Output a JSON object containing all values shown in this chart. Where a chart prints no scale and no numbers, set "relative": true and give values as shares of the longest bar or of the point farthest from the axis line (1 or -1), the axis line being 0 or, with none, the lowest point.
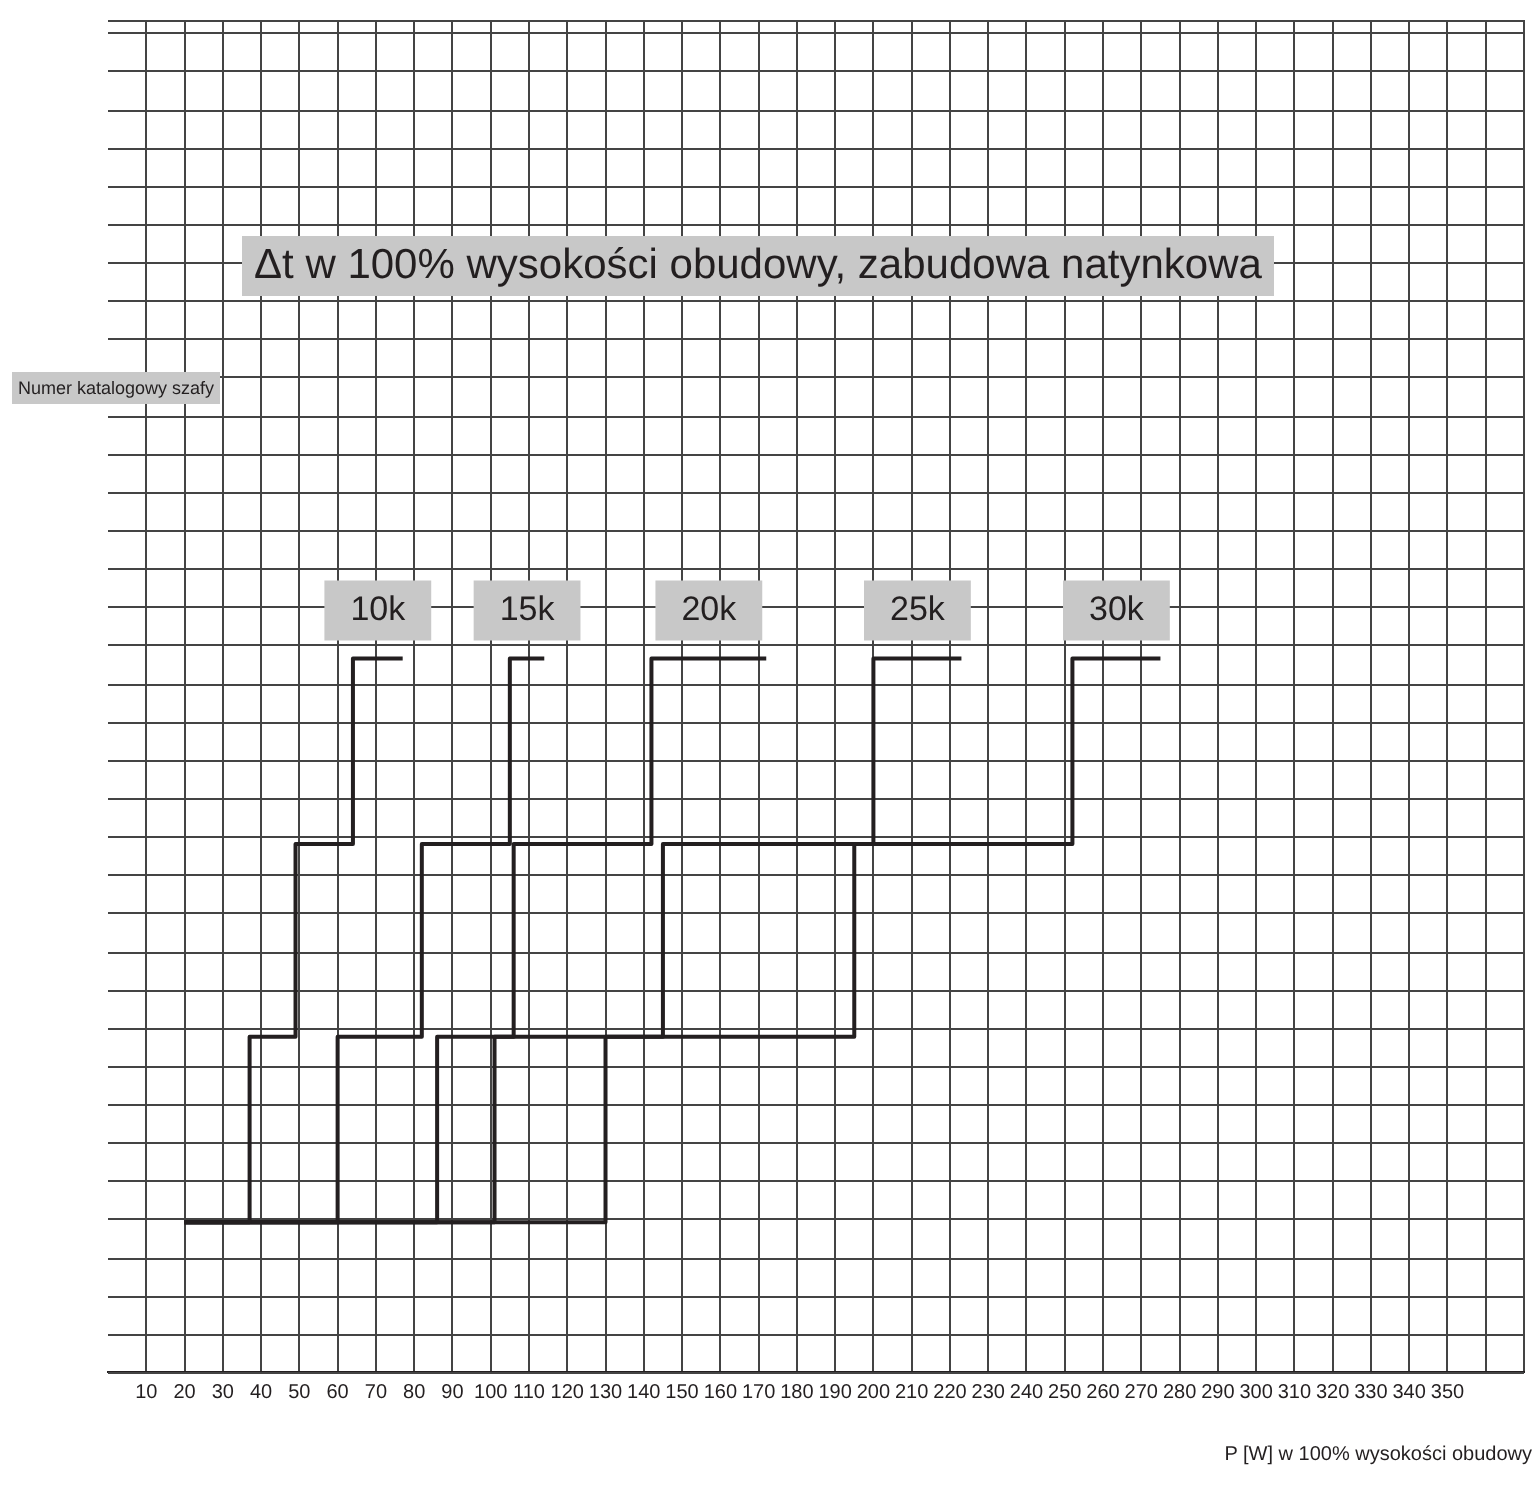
{
  "chart_data": {
    "type": "step",
    "title": "Δt w 100% wysokości obudowy, zabudowa natynkowa",
    "xlabel": "P [W] w 100% wysokości obudowy",
    "annotations": [
      "Numer katalogowy szafy"
    ],
    "relative": true,
    "xlim": [
      0,
      370
    ],
    "xticks": [
      10,
      20,
      30,
      40,
      50,
      60,
      70,
      80,
      90,
      100,
      110,
      120,
      130,
      140,
      150,
      160,
      170,
      180,
      190,
      200,
      210,
      220,
      230,
      240,
      250,
      260,
      270,
      280,
      290,
      300,
      310,
      320,
      330,
      340,
      350,
      {
        "value": 360,
        "label": null
      },
      {
        "value": 370,
        "label": null
      }
    ],
    "grid": true,
    "legend": false,
    "marker": "none",
    "line_style": "solid",
    "series": [
      {
        "name": "10k",
        "color": "#231f20",
        "x": [
          20,
          37,
          49,
          64,
          77
        ],
        "values": [
          0.21,
          0.47,
          0.74,
          1,
          1
        ]
      },
      {
        "name": "15k",
        "color": "#231f20",
        "x": [
          20,
          60,
          82,
          105,
          114
        ],
        "values": [
          0.21,
          0.47,
          0.74,
          1,
          1
        ]
      },
      {
        "name": "20k",
        "color": "#231f20",
        "x": [
          20,
          86,
          106,
          142,
          172
        ],
        "values": [
          0.21,
          0.47,
          0.74,
          1,
          1
        ]
      },
      {
        "name": "25k",
        "color": "#231f20",
        "x": [
          20,
          101,
          145,
          200,
          223
        ],
        "values": [
          0.21,
          0.47,
          0.74,
          1,
          1
        ]
      },
      {
        "name": "30k",
        "color": "#231f20",
        "x": [
          20,
          130,
          195,
          252,
          275
        ],
        "values": [
          0.21,
          0.47,
          0.74,
          1,
          1
        ]
      }
    ]
  }
}
